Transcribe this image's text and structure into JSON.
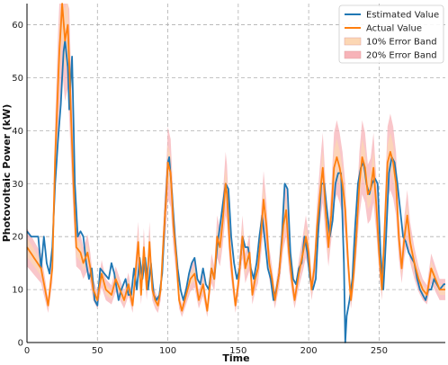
{
  "chart_data": {
    "type": "line",
    "title": "",
    "xlabel": "Time",
    "ylabel": "Photovoltaic Power (kW)",
    "xlim": [
      0,
      297
    ],
    "ylim": [
      0,
      64
    ],
    "x_ticks": [
      0,
      50,
      100,
      150,
      200,
      250
    ],
    "y_ticks": [
      0,
      10,
      20,
      30,
      40,
      50,
      60
    ],
    "grid": true,
    "legend_position": "top-right",
    "colors": {
      "estimated": "#1f77b4",
      "actual": "#ff7f0e",
      "band10": "#fcd7b4",
      "band20": "#f7b3b8"
    },
    "legend": [
      {
        "key": "estimated",
        "label": "Estimated Value",
        "kind": "line"
      },
      {
        "key": "actual",
        "label": "Actual Value",
        "kind": "line"
      },
      {
        "key": "band10",
        "label": "10% Error Band",
        "kind": "patch"
      },
      {
        "key": "band20",
        "label": "20% Error Band",
        "kind": "patch"
      }
    ],
    "actual_keypoints": [
      [
        0,
        18
      ],
      [
        5,
        16
      ],
      [
        10,
        14
      ],
      [
        15,
        7
      ],
      [
        18,
        14
      ],
      [
        20,
        35
      ],
      [
        23,
        55
      ],
      [
        25,
        64
      ],
      [
        27,
        57
      ],
      [
        29,
        60
      ],
      [
        31,
        45
      ],
      [
        33,
        30
      ],
      [
        35,
        18
      ],
      [
        38,
        17
      ],
      [
        40,
        15
      ],
      [
        43,
        17
      ],
      [
        45,
        14
      ],
      [
        47,
        10
      ],
      [
        50,
        8
      ],
      [
        53,
        13
      ],
      [
        56,
        10
      ],
      [
        60,
        9
      ],
      [
        63,
        12
      ],
      [
        66,
        10
      ],
      [
        69,
        8
      ],
      [
        72,
        11
      ],
      [
        75,
        7
      ],
      [
        77,
        13
      ],
      [
        79,
        19
      ],
      [
        81,
        9
      ],
      [
        83,
        18
      ],
      [
        85,
        10
      ],
      [
        87,
        19
      ],
      [
        89,
        10
      ],
      [
        91,
        8
      ],
      [
        93,
        7
      ],
      [
        95,
        10
      ],
      [
        97,
        20
      ],
      [
        99,
        28
      ],
      [
        100,
        34
      ],
      [
        102,
        32
      ],
      [
        104,
        22
      ],
      [
        106,
        16
      ],
      [
        108,
        8
      ],
      [
        110,
        6
      ],
      [
        113,
        9
      ],
      [
        116,
        12
      ],
      [
        119,
        13
      ],
      [
        122,
        8
      ],
      [
        125,
        11
      ],
      [
        128,
        6
      ],
      [
        131,
        14
      ],
      [
        133,
        12
      ],
      [
        135,
        20
      ],
      [
        137,
        18
      ],
      [
        139,
        23
      ],
      [
        141,
        30
      ],
      [
        142,
        28
      ],
      [
        144,
        18
      ],
      [
        146,
        12
      ],
      [
        148,
        7
      ],
      [
        150,
        11
      ],
      [
        153,
        20
      ],
      [
        155,
        14
      ],
      [
        158,
        17
      ],
      [
        160,
        9
      ],
      [
        162,
        12
      ],
      [
        164,
        14
      ],
      [
        166,
        20
      ],
      [
        168,
        27
      ],
      [
        170,
        22
      ],
      [
        172,
        15
      ],
      [
        174,
        12
      ],
      [
        176,
        8
      ],
      [
        179,
        13
      ],
      [
        182,
        22
      ],
      [
        184,
        25
      ],
      [
        186,
        17
      ],
      [
        188,
        12
      ],
      [
        190,
        8
      ],
      [
        193,
        13
      ],
      [
        196,
        17
      ],
      [
        198,
        20
      ],
      [
        200,
        17
      ],
      [
        202,
        10
      ],
      [
        204,
        14
      ],
      [
        206,
        22
      ],
      [
        208,
        28
      ],
      [
        210,
        33
      ],
      [
        212,
        25
      ],
      [
        214,
        18
      ],
      [
        216,
        24
      ],
      [
        218,
        33
      ],
      [
        220,
        35
      ],
      [
        222,
        33
      ],
      [
        224,
        30
      ],
      [
        226,
        25
      ],
      [
        228,
        15
      ],
      [
        230,
        8
      ],
      [
        232,
        13
      ],
      [
        234,
        21
      ],
      [
        236,
        30
      ],
      [
        238,
        35
      ],
      [
        240,
        33
      ],
      [
        242,
        28
      ],
      [
        244,
        29
      ],
      [
        246,
        33
      ],
      [
        248,
        26
      ],
      [
        250,
        17
      ],
      [
        252,
        10
      ],
      [
        254,
        22
      ],
      [
        256,
        34
      ],
      [
        258,
        36
      ],
      [
        260,
        34
      ],
      [
        262,
        30
      ],
      [
        264,
        20
      ],
      [
        266,
        14
      ],
      [
        268,
        20
      ],
      [
        270,
        24
      ],
      [
        272,
        19
      ],
      [
        275,
        15
      ],
      [
        278,
        12
      ],
      [
        281,
        10
      ],
      [
        284,
        9
      ],
      [
        287,
        14
      ],
      [
        290,
        12
      ],
      [
        293,
        10
      ],
      [
        296,
        10
      ]
    ],
    "estimated_keypoints": [
      [
        0,
        21
      ],
      [
        3,
        20
      ],
      [
        6,
        20
      ],
      [
        8,
        20
      ],
      [
        10,
        14
      ],
      [
        12,
        20
      ],
      [
        14,
        15
      ],
      [
        16,
        13
      ],
      [
        18,
        18
      ],
      [
        20,
        30
      ],
      [
        22,
        38
      ],
      [
        24,
        45
      ],
      [
        26,
        55
      ],
      [
        27,
        57
      ],
      [
        29,
        52
      ],
      [
        30,
        44
      ],
      [
        32,
        54
      ],
      [
        34,
        30
      ],
      [
        36,
        20
      ],
      [
        38,
        21
      ],
      [
        40,
        20
      ],
      [
        42,
        15
      ],
      [
        44,
        12
      ],
      [
        46,
        14
      ],
      [
        48,
        8
      ],
      [
        50,
        7
      ],
      [
        52,
        14
      ],
      [
        55,
        13
      ],
      [
        58,
        12
      ],
      [
        60,
        15
      ],
      [
        62,
        13
      ],
      [
        65,
        8
      ],
      [
        67,
        10
      ],
      [
        70,
        12
      ],
      [
        72,
        9
      ],
      [
        74,
        9
      ],
      [
        76,
        14
      ],
      [
        78,
        10
      ],
      [
        80,
        16
      ],
      [
        82,
        12
      ],
      [
        84,
        16
      ],
      [
        86,
        10
      ],
      [
        88,
        15
      ],
      [
        90,
        9
      ],
      [
        92,
        8
      ],
      [
        94,
        9
      ],
      [
        96,
        13
      ],
      [
        98,
        24
      ],
      [
        100,
        34
      ],
      [
        101,
        35
      ],
      [
        103,
        28
      ],
      [
        105,
        20
      ],
      [
        107,
        14
      ],
      [
        109,
        10
      ],
      [
        111,
        8
      ],
      [
        113,
        10
      ],
      [
        115,
        13
      ],
      [
        117,
        15
      ],
      [
        119,
        16
      ],
      [
        121,
        12
      ],
      [
        123,
        11
      ],
      [
        125,
        14
      ],
      [
        127,
        11
      ],
      [
        129,
        10
      ],
      [
        131,
        14
      ],
      [
        133,
        12
      ],
      [
        135,
        18
      ],
      [
        137,
        22
      ],
      [
        139,
        26
      ],
      [
        141,
        30
      ],
      [
        143,
        29
      ],
      [
        145,
        20
      ],
      [
        147,
        15
      ],
      [
        149,
        12
      ],
      [
        151,
        14
      ],
      [
        153,
        20
      ],
      [
        155,
        18
      ],
      [
        157,
        18
      ],
      [
        159,
        14
      ],
      [
        161,
        12
      ],
      [
        163,
        15
      ],
      [
        165,
        20
      ],
      [
        167,
        24
      ],
      [
        169,
        19
      ],
      [
        171,
        14
      ],
      [
        173,
        12
      ],
      [
        175,
        8
      ],
      [
        177,
        10
      ],
      [
        179,
        13
      ],
      [
        181,
        20
      ],
      [
        183,
        30
      ],
      [
        185,
        29
      ],
      [
        187,
        17
      ],
      [
        189,
        12
      ],
      [
        191,
        11
      ],
      [
        193,
        14
      ],
      [
        195,
        15
      ],
      [
        197,
        20
      ],
      [
        199,
        17
      ],
      [
        201,
        12
      ],
      [
        203,
        10
      ],
      [
        205,
        12
      ],
      [
        207,
        22
      ],
      [
        209,
        30
      ],
      [
        211,
        30
      ],
      [
        213,
        25
      ],
      [
        215,
        20
      ],
      [
        217,
        23
      ],
      [
        219,
        30
      ],
      [
        221,
        32
      ],
      [
        223,
        32
      ],
      [
        225,
        15
      ],
      [
        226,
        0
      ],
      [
        227,
        5
      ],
      [
        229,
        8
      ],
      [
        231,
        12
      ],
      [
        233,
        22
      ],
      [
        235,
        30
      ],
      [
        237,
        33
      ],
      [
        239,
        34
      ],
      [
        241,
        30
      ],
      [
        243,
        28
      ],
      [
        245,
        30
      ],
      [
        247,
        31
      ],
      [
        249,
        30
      ],
      [
        251,
        17
      ],
      [
        253,
        10
      ],
      [
        255,
        20
      ],
      [
        257,
        32
      ],
      [
        259,
        35
      ],
      [
        261,
        34
      ],
      [
        263,
        30
      ],
      [
        265,
        25
      ],
      [
        267,
        20
      ],
      [
        269,
        19
      ],
      [
        271,
        17
      ],
      [
        273,
        16
      ],
      [
        275,
        15
      ],
      [
        277,
        12
      ],
      [
        279,
        10
      ],
      [
        281,
        9
      ],
      [
        283,
        8
      ],
      [
        285,
        10
      ],
      [
        287,
        10
      ],
      [
        289,
        12
      ],
      [
        291,
        11
      ],
      [
        293,
        10
      ],
      [
        296,
        11
      ]
    ]
  }
}
